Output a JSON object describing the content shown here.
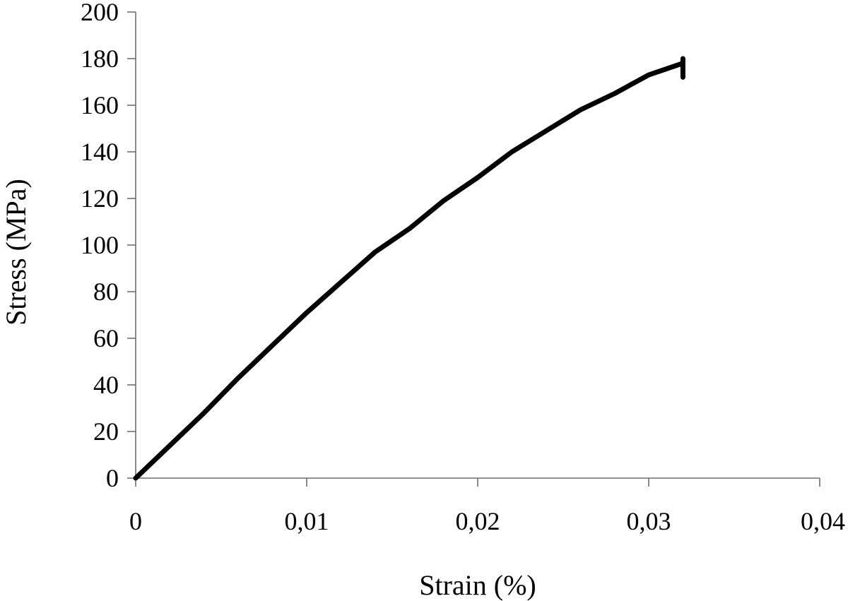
{
  "chart_data": {
    "type": "line",
    "title": "",
    "xlabel": "Strain (%)",
    "ylabel": "Stress (MPa)",
    "xlim": [
      0,
      0.04
    ],
    "ylim": [
      0,
      200
    ],
    "x_ticks": [
      0,
      0.01,
      0.02,
      0.03,
      0.04
    ],
    "x_tick_labels": [
      "0",
      "0,01",
      "0,02",
      "0,03",
      "0,04"
    ],
    "y_ticks": [
      0,
      20,
      40,
      60,
      80,
      100,
      120,
      140,
      160,
      180,
      200
    ],
    "y_tick_labels": [
      "0",
      "20",
      "40",
      "60",
      "80",
      "100",
      "120",
      "140",
      "160",
      "180",
      "200"
    ],
    "grid": false,
    "legend": "none",
    "series": [
      {
        "color": "#000000",
        "x": [
          0,
          0.002,
          0.004,
          0.006,
          0.008,
          0.01,
          0.012,
          0.014,
          0.016,
          0.018,
          0.02,
          0.022,
          0.024,
          0.026,
          0.028,
          0.03,
          0.032,
          0.032,
          0.032
        ],
        "y": [
          0,
          14,
          28,
          43,
          57,
          71,
          84,
          97,
          107,
          119,
          129,
          140,
          149,
          158,
          165,
          173,
          178,
          180,
          172
        ]
      }
    ]
  }
}
